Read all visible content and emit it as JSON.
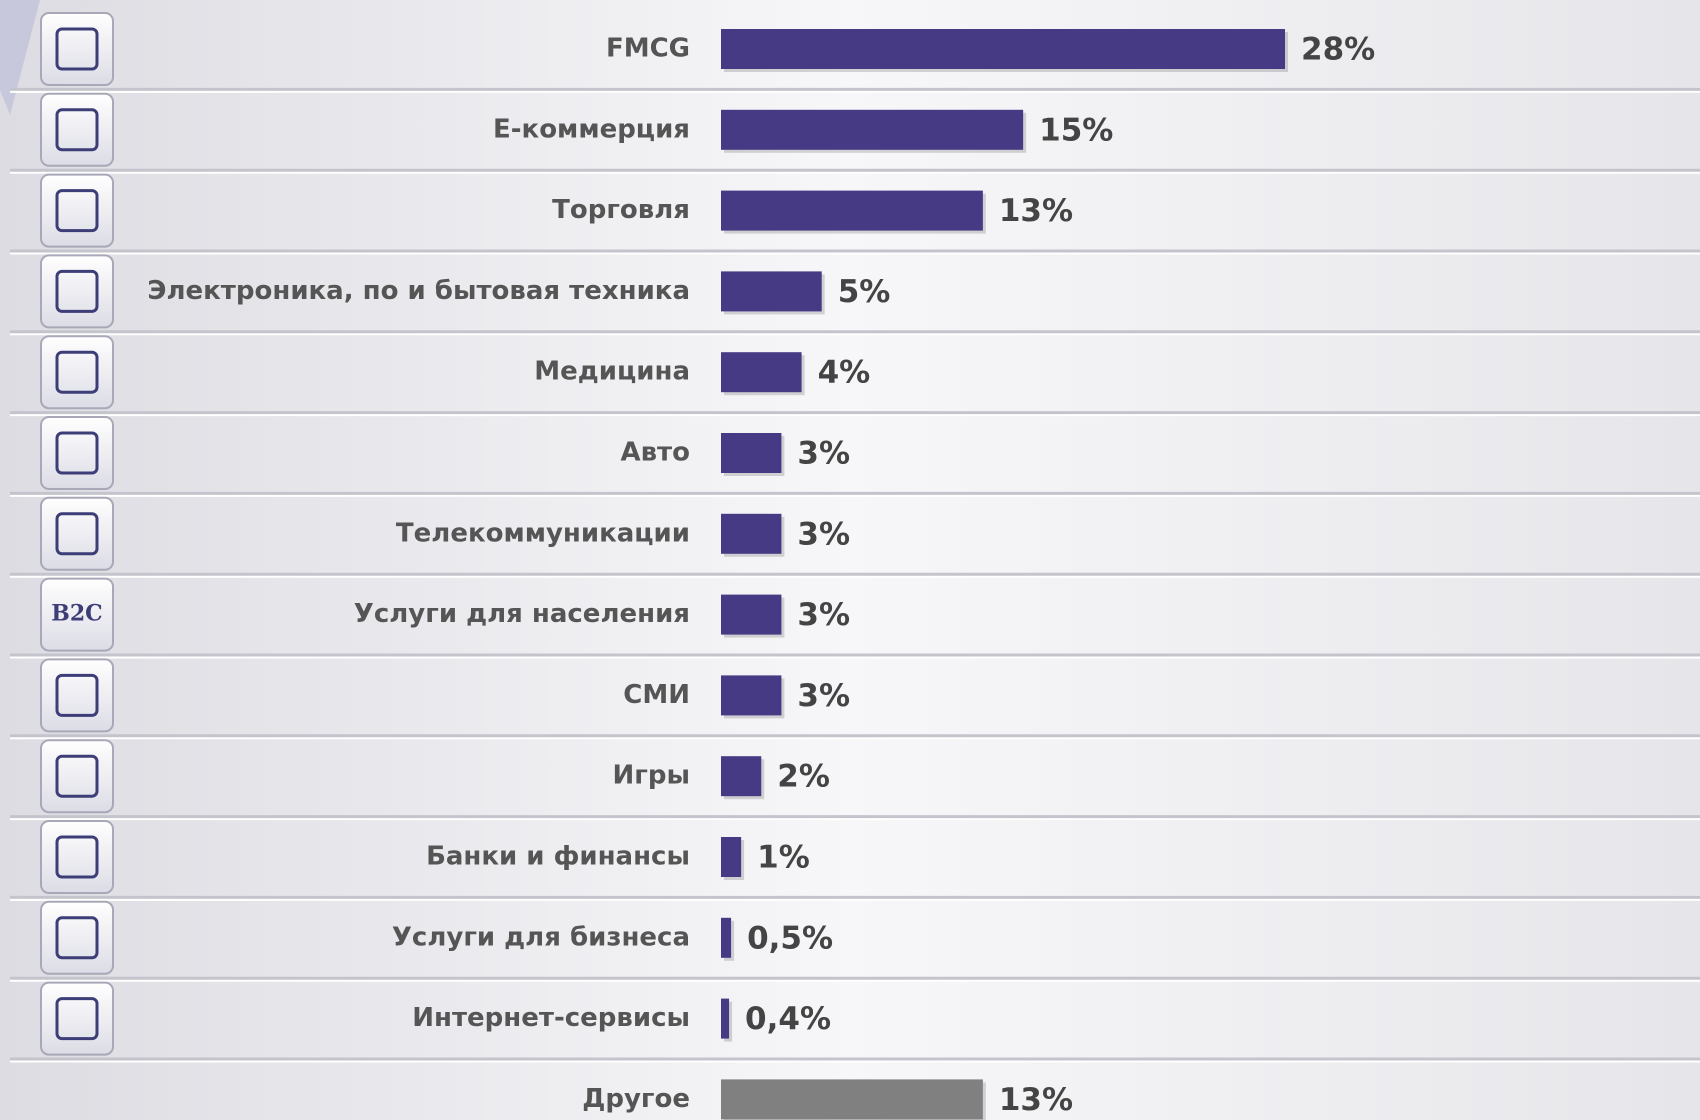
{
  "chart_data": {
    "type": "bar",
    "orientation": "horizontal",
    "categories": [
      "FMCG",
      "Е-коммерция",
      "Торговля",
      "Электроника, по и бытовая техника",
      "Медицина",
      "Авто",
      "Телекоммуникации",
      "Услуги для населения",
      "СМИ",
      "Игры",
      "Банки и финансы",
      "Услуги для бизнеса",
      "Интернет-сервисы",
      "Другое"
    ],
    "values": [
      28,
      15,
      13,
      5,
      4,
      3,
      3,
      3,
      3,
      2,
      1,
      0.5,
      0.4,
      13
    ],
    "value_labels": [
      "28%",
      "15%",
      "13%",
      "5%",
      "4%",
      "3%",
      "3%",
      "3%",
      "3%",
      "2%",
      "1%",
      "0,5%",
      "0,4%",
      "13%"
    ],
    "colors": [
      "#453a83",
      "#453a83",
      "#453a83",
      "#453a83",
      "#453a83",
      "#453a83",
      "#453a83",
      "#453a83",
      "#453a83",
      "#453a83",
      "#453a83",
      "#453a83",
      "#453a83",
      "#808080"
    ],
    "annotations": [
      "B2C"
    ]
  }
}
